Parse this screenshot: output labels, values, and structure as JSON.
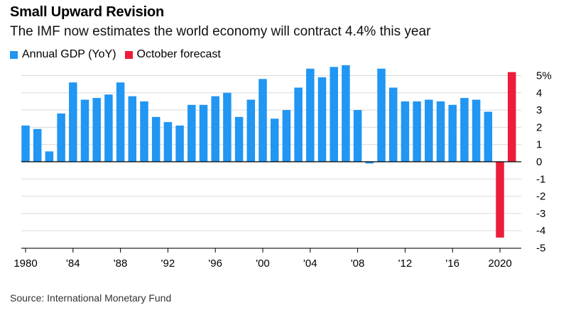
{
  "title": "Small Upward Revision",
  "subtitle": "The IMF now estimates the world economy will contract 4.4% this year",
  "source": "Source: International Monetary Fund",
  "colors": {
    "annual": "#2196f3",
    "forecast": "#ee1c3a",
    "grid": "#d9d9d9",
    "axis": "#000000"
  },
  "chart_data": {
    "type": "bar",
    "x_ticks": [
      "1980",
      "'84",
      "'88",
      "'92",
      "'96",
      "'00",
      "'04",
      "'08",
      "'12",
      "'16",
      "2020"
    ],
    "y_ticks": [
      "5%",
      "4",
      "3",
      "2",
      "1",
      "0",
      "-1",
      "-2",
      "-3",
      "-4",
      "-5"
    ],
    "ylim": [
      -5,
      5.5
    ],
    "y_axis_side": "right",
    "grid": true,
    "legend_position": "top-left",
    "series": [
      {
        "name": "Annual GDP (YoY)",
        "color": "#2196f3",
        "x": [
          1980,
          1981,
          1982,
          1983,
          1984,
          1985,
          1986,
          1987,
          1988,
          1989,
          1990,
          1991,
          1992,
          1993,
          1994,
          1995,
          1996,
          1997,
          1998,
          1999,
          2000,
          2001,
          2002,
          2003,
          2004,
          2005,
          2006,
          2007,
          2008,
          2009,
          2010,
          2011,
          2012,
          2013,
          2014,
          2015,
          2016,
          2017,
          2018,
          2019
        ],
        "values": [
          2.1,
          1.9,
          0.6,
          2.8,
          4.6,
          3.6,
          3.7,
          3.9,
          4.6,
          3.8,
          3.5,
          2.6,
          2.3,
          2.1,
          3.3,
          3.3,
          3.8,
          4.0,
          2.6,
          3.6,
          4.8,
          2.5,
          3.0,
          4.3,
          5.4,
          4.9,
          5.5,
          5.6,
          3.0,
          -0.1,
          5.4,
          4.3,
          3.5,
          3.5,
          3.6,
          3.5,
          3.3,
          3.7,
          3.6,
          2.9
        ]
      },
      {
        "name": "October forecast",
        "color": "#ee1c3a",
        "x": [
          2020,
          2021
        ],
        "values": [
          -4.4,
          5.2
        ]
      }
    ]
  }
}
